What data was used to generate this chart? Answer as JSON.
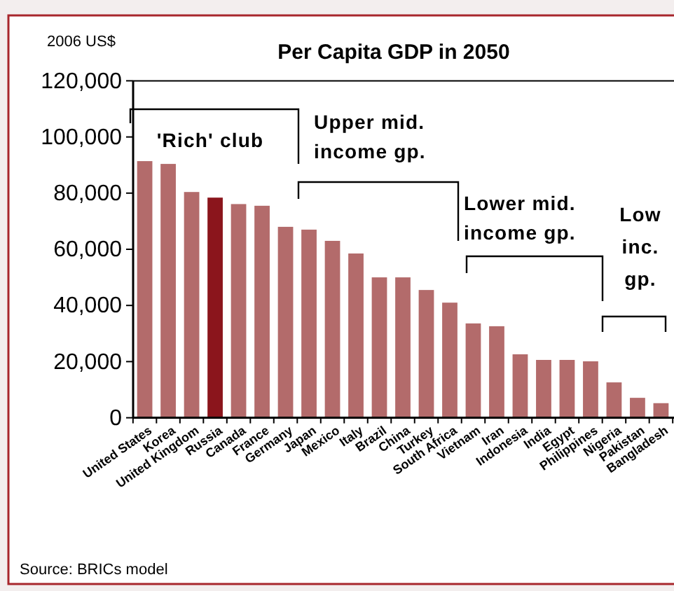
{
  "chart_data": {
    "type": "bar",
    "title": "Per Capita GDP in 2050",
    "ylabel": "2006 US$",
    "categories": [
      "United States",
      "Korea",
      "United Kingdom",
      "Russia",
      "Canada",
      "France",
      "Germany",
      "Japan",
      "Mexico",
      "Italy",
      "Brazil",
      "China",
      "Turkey",
      "South Africa",
      "Vietnam",
      "Iran",
      "Indonesia",
      "India",
      "Egypt",
      "Philippines",
      "Nigeria",
      "Pakistan",
      "Bangladesh"
    ],
    "values": [
      91400,
      90400,
      80400,
      78400,
      76100,
      75500,
      68000,
      67000,
      63000,
      58500,
      50000,
      50000,
      45500,
      41000,
      33600,
      32600,
      22600,
      20600,
      20600,
      20100,
      12600,
      7100,
      5200
    ],
    "colors": [
      "#b36b6b",
      "#b36b6b",
      "#b36b6b",
      "#8b151c",
      "#b36b6b",
      "#b36b6b",
      "#b36b6b",
      "#b36b6b",
      "#b36b6b",
      "#b36b6b",
      "#b36b6b",
      "#b36b6b",
      "#b36b6b",
      "#b36b6b",
      "#b36b6b",
      "#b36b6b",
      "#b36b6b",
      "#b36b6b",
      "#b36b6b",
      "#b36b6b",
      "#b36b6b",
      "#b36b6b",
      "#b36b6b"
    ],
    "ylim": [
      0,
      120000
    ],
    "yticks": [
      {
        "value": 0,
        "label": "0"
      },
      {
        "value": 20000,
        "label": "20,000"
      },
      {
        "value": 40000,
        "label": "40,000"
      },
      {
        "value": 60000,
        "label": "60,000"
      },
      {
        "value": 80000,
        "label": "80,000"
      },
      {
        "value": 100000,
        "label": "100,000"
      },
      {
        "value": 120000,
        "label": "120,000"
      }
    ],
    "grid": false,
    "annotations": [
      "'Rich' club",
      "Upper mid.\nincome gp.",
      "Lower mid.\nincome gp.",
      "Low\ninc.\ngp.",
      "Source: BRICs model"
    ]
  }
}
